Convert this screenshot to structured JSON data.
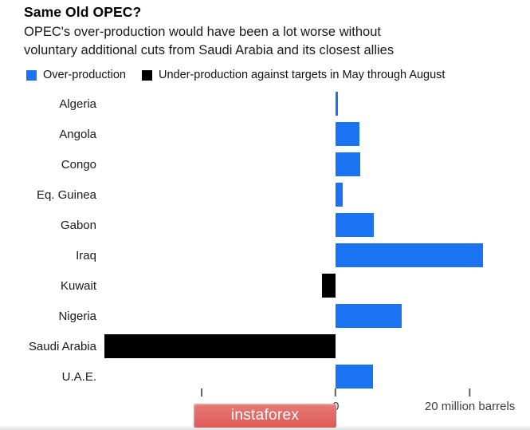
{
  "header": {
    "title": "Same Old OPEC?",
    "subtitle_lines": [
      "OPEC's over-production would have been a lot worse without",
      "voluntary additional cuts from Saudi Arabia and its closest allies"
    ]
  },
  "legend": {
    "items": [
      {
        "label": "Over-production",
        "color": "#1a73f0"
      },
      {
        "label": "Under-production against targets in May through August",
        "color": "#000000"
      }
    ]
  },
  "chart_data": {
    "type": "bar",
    "orientation": "horizontal",
    "title": "Same Old OPEC?",
    "unit": "million barrels",
    "categories": [
      "Algeria",
      "Angola",
      "Congo",
      "Eq. Guinea",
      "Gabon",
      "Iraq",
      "Kuwait",
      "Nigeria",
      "Saudi Arabia",
      "U.A.E."
    ],
    "values": [
      0.3,
      3.5,
      3.7,
      1.0,
      5.7,
      22.0,
      -2.1,
      9.8,
      -34.5,
      5.6
    ],
    "series_colors": {
      "positive": "#1a73f0",
      "negative": "#000000"
    },
    "xlim": [
      -34.6,
      28.6
    ],
    "grid": false,
    "legend_position": "top",
    "ticks": [
      {
        "value": -20,
        "label": ""
      },
      {
        "value": 0,
        "label": "0"
      },
      {
        "value": 20,
        "label": "20 million barrels"
      }
    ]
  },
  "watermark": {
    "label": "instaforex",
    "background": "#e0615f"
  }
}
